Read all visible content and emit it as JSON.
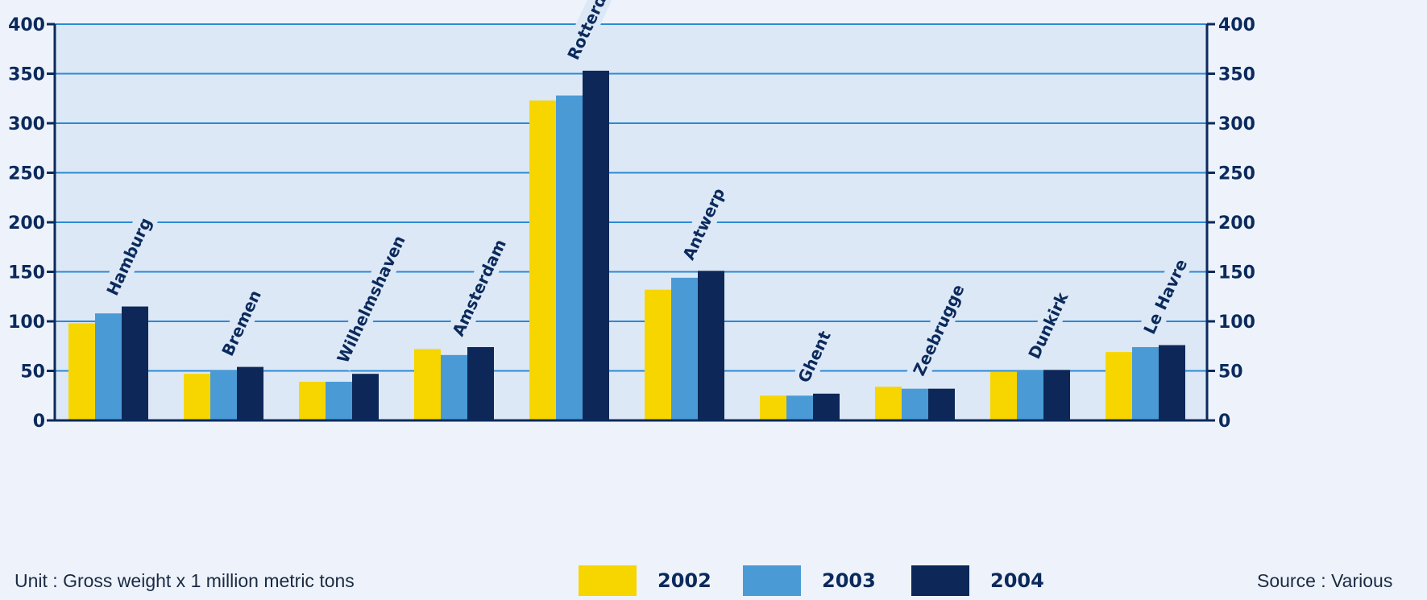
{
  "chart_data": {
    "type": "bar",
    "unit_note": "Unit : Gross weight x 1 million metric tons",
    "source_note": "Source : Various",
    "categories": [
      "Hamburg",
      "Bremen",
      "Wilhelmshaven",
      "Amsterdam",
      "Rotterdam",
      "Antwerp",
      "Ghent",
      "Zeebrugge",
      "Dunkirk",
      "Le Havre"
    ],
    "series": [
      {
        "name": "2002",
        "color": "#f7d600",
        "values": [
          98,
          47,
          39,
          72,
          323,
          132,
          25,
          34,
          49,
          69
        ]
      },
      {
        "name": "2003",
        "color": "#4a9ad6",
        "values": [
          108,
          51,
          39,
          66,
          328,
          144,
          25,
          32,
          51,
          74
        ]
      },
      {
        "name": "2004",
        "color": "#0d2858",
        "values": [
          115,
          54,
          47,
          74,
          353,
          151,
          27,
          32,
          51,
          76
        ]
      }
    ],
    "ylim": [
      0,
      400
    ],
    "yticks": [
      "0",
      "50",
      "100",
      "150",
      "200",
      "250",
      "300",
      "350",
      "400"
    ],
    "grid": true,
    "legend_position": "bottom",
    "colors": {
      "plot_background": "#dde8f6",
      "gridline": "#2a8ad4",
      "axis": "#0b2a5c",
      "text": "#0b2a5c"
    }
  }
}
